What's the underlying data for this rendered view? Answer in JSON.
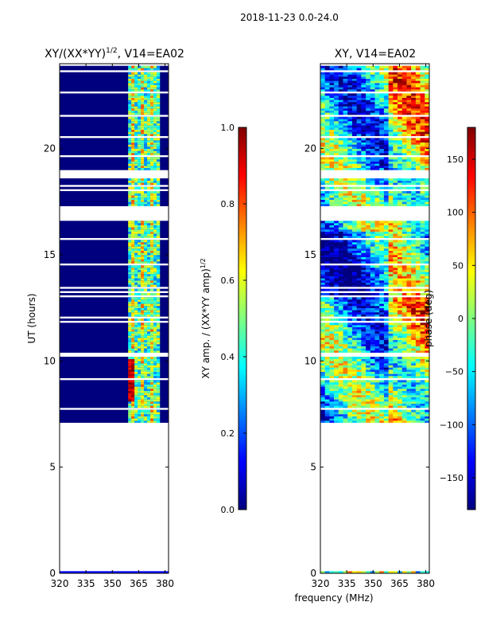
{
  "suptitle": "2018-11-23 0.0-24.0",
  "xlabel_shared": "frequency (MHz)",
  "colors": {
    "jet": [
      "#00007f",
      "#0000ff",
      "#007fff",
      "#00ffff",
      "#7fff7f",
      "#ffff00",
      "#ff7f00",
      "#ff0000",
      "#7f0000"
    ],
    "flagged": "#ffffff"
  },
  "chart_data": [
    {
      "type": "heatmap",
      "title_main": "XY/(XX*YY)",
      "title_sup": "1/2",
      "title_rest": ", V14=EA02",
      "ylabel": "UT (hours)",
      "xlim": [
        320,
        382
      ],
      "ylim": [
        0,
        24
      ],
      "xticks": [
        320,
        335,
        350,
        365,
        380
      ],
      "yticks": [
        0,
        5,
        10,
        15,
        20
      ],
      "rfi_band_mhz": [
        359,
        377
      ],
      "colorbar": {
        "label_main": "XY amp. / (XX*YY amp)",
        "label_sup": "1/2",
        "range": [
          0.0,
          1.0
        ],
        "ticks": [
          "0.0",
          "0.2",
          "0.4",
          "0.6",
          "0.8",
          "1.0"
        ],
        "tick_values": [
          0.0,
          0.2,
          0.4,
          0.6,
          0.8,
          1.0
        ]
      }
    },
    {
      "type": "heatmap",
      "title": "XY, V14=EA02",
      "xlim": [
        320,
        382
      ],
      "ylim": [
        0,
        24
      ],
      "xticks": [
        320,
        335,
        350,
        365,
        380
      ],
      "yticks": [
        0,
        5,
        10,
        15,
        20
      ],
      "colorbar": {
        "label": "phase (deg)",
        "range": [
          -180,
          180
        ],
        "ticks": [
          "150",
          "100",
          "50",
          "0",
          "−50",
          "−100",
          "−150"
        ],
        "tick_values": [
          150,
          100,
          50,
          0,
          -50,
          -100,
          -150
        ]
      }
    }
  ],
  "flagged_hours": [
    [
      0.05,
      7.1
    ],
    [
      17.2,
      16.5
    ],
    [
      18.55,
      19.0
    ]
  ],
  "observed_hours": [
    7.1,
    24.0
  ]
}
